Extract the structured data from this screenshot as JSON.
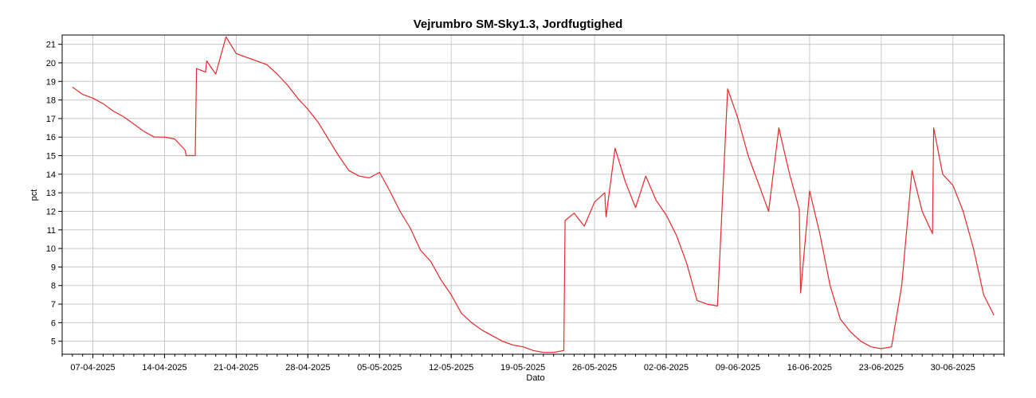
{
  "chart_data": {
    "type": "line",
    "title": "Vejrumbro SM-Sky1.3, Jordfugtighed",
    "xlabel": "Dato",
    "ylabel": "pct",
    "ylim": [
      4.3,
      21.5
    ],
    "xlim": [
      "2025-04-04",
      "2025-07-05"
    ],
    "grid": true,
    "legend": "none",
    "x_ticks": [
      "07-04-2025",
      "14-04-2025",
      "21-04-2025",
      "28-04-2025",
      "05-05-2025",
      "12-05-2025",
      "19-05-2025",
      "26-05-2025",
      "02-06-2025",
      "09-06-2025",
      "16-06-2025",
      "23-06-2025",
      "30-06-2025"
    ],
    "y_ticks": [
      5,
      6,
      7,
      8,
      9,
      10,
      11,
      12,
      13,
      14,
      15,
      16,
      17,
      18,
      19,
      20,
      21
    ],
    "colors": {
      "line": "#e8282a",
      "grid": "#c8c8c8",
      "axis": "#000000"
    },
    "series": [
      {
        "x": [
          "2025-04-05",
          "2025-04-06",
          "2025-04-07",
          "2025-04-08",
          "2025-04-09",
          "2025-04-10",
          "2025-04-11",
          "2025-04-12",
          "2025-04-13",
          "2025-04-14",
          "2025-04-15",
          "2025-04-16",
          "2025-04-16",
          "2025-04-17",
          "2025-04-17",
          "2025-04-18",
          "2025-04-18",
          "2025-04-19",
          "2025-04-20",
          "2025-04-21",
          "2025-04-22",
          "2025-04-23",
          "2025-04-24",
          "2025-04-25",
          "2025-04-26",
          "2025-04-27",
          "2025-04-28",
          "2025-04-29",
          "2025-04-30",
          "2025-05-01",
          "2025-05-02",
          "2025-05-03",
          "2025-05-04",
          "2025-05-05",
          "2025-05-06",
          "2025-05-07",
          "2025-05-08",
          "2025-05-09",
          "2025-05-10",
          "2025-05-11",
          "2025-05-12",
          "2025-05-13",
          "2025-05-14",
          "2025-05-15",
          "2025-05-16",
          "2025-05-17",
          "2025-05-18",
          "2025-05-19",
          "2025-05-20",
          "2025-05-21",
          "2025-05-22",
          "2025-05-23",
          "2025-05-23",
          "2025-05-24",
          "2025-05-25",
          "2025-05-26",
          "2025-05-27",
          "2025-05-27",
          "2025-05-28",
          "2025-05-29",
          "2025-05-30",
          "2025-05-31",
          "2025-06-01",
          "2025-06-02",
          "2025-06-03",
          "2025-06-04",
          "2025-06-05",
          "2025-06-06",
          "2025-06-07",
          "2025-06-08",
          "2025-06-09",
          "2025-06-10",
          "2025-06-11",
          "2025-06-12",
          "2025-06-13",
          "2025-06-14",
          "2025-06-15",
          "2025-06-15",
          "2025-06-16",
          "2025-06-17",
          "2025-06-18",
          "2025-06-19",
          "2025-06-20",
          "2025-06-21",
          "2025-06-22",
          "2025-06-23",
          "2025-06-24",
          "2025-06-25",
          "2025-06-26",
          "2025-06-27",
          "2025-06-28",
          "2025-06-28",
          "2025-06-29",
          "2025-06-30",
          "2025-07-01",
          "2025-07-02",
          "2025-07-03",
          "2025-07-04"
        ],
        "values": [
          18.7,
          18.3,
          18.1,
          17.8,
          17.4,
          17.1,
          16.7,
          16.3,
          16.0,
          16.0,
          15.9,
          15.3,
          15.0,
          15.0,
          19.7,
          19.5,
          20.1,
          19.4,
          21.4,
          20.5,
          20.3,
          20.1,
          19.9,
          19.4,
          18.8,
          18.1,
          17.5,
          16.8,
          15.9,
          15.0,
          14.2,
          13.9,
          13.8,
          14.1,
          13.1,
          12.0,
          11.1,
          9.9,
          9.3,
          8.3,
          7.5,
          6.5,
          6.0,
          5.6,
          5.3,
          5.0,
          4.8,
          4.7,
          4.5,
          4.4,
          4.4,
          4.5,
          11.5,
          11.9,
          11.2,
          12.5,
          13.0,
          11.7,
          15.4,
          13.6,
          12.2,
          13.9,
          12.6,
          11.8,
          10.7,
          9.2,
          7.2,
          7.0,
          6.9,
          18.6,
          17.0,
          15.0,
          13.5,
          12.0,
          16.5,
          14.1,
          12.1,
          7.6,
          13.1,
          10.8,
          8.0,
          6.2,
          5.5,
          5.0,
          4.7,
          4.6,
          4.7,
          8.0,
          14.2,
          12.0,
          10.8,
          16.5,
          14.0,
          13.4,
          12.0,
          10.0,
          7.5,
          6.4
        ]
      }
    ]
  }
}
